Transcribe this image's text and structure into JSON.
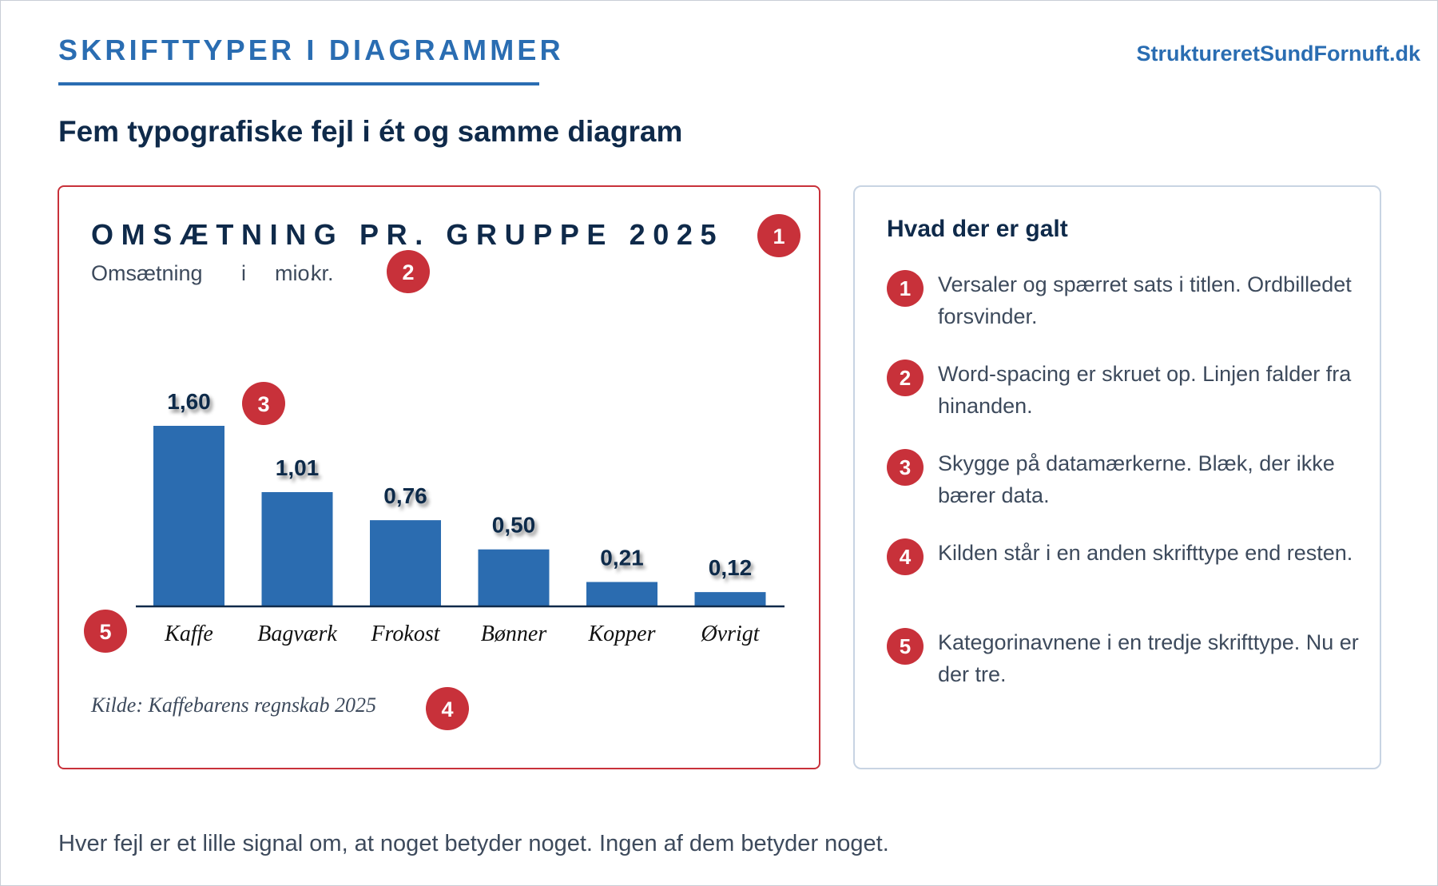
{
  "header": {
    "kicker": "SKRIFTTYPER I DIAGRAMMER",
    "site": "StruktureretSundFornuft.dk",
    "subtitle": "Fem typografiske fejl i ét og samme diagram"
  },
  "chart_data": {
    "type": "bar",
    "title": "OMSÆTNING PR. GRUPPE 2025",
    "subtitle_words": [
      "Omsætning",
      "i",
      "mio.",
      "kr."
    ],
    "categories": [
      "Kaffe",
      "Bagværk",
      "Frokost",
      "Bønner",
      "Kopper",
      "Øvrigt"
    ],
    "values": [
      1.6,
      1.01,
      0.76,
      0.5,
      0.21,
      0.12
    ],
    "value_labels": [
      "1,60",
      "1,01",
      "0,76",
      "0,50",
      "0,21",
      "0,12"
    ],
    "source": "Kilde: Kaffebarens regnskab 2025",
    "ylim": [
      0,
      1.6
    ],
    "grid": false,
    "bar_color": "#2b6cb0",
    "annotation_color": "#c8313a",
    "annotations": [
      "1",
      "2",
      "3",
      "4",
      "5"
    ]
  },
  "side": {
    "title": "Hvad der er galt",
    "items": [
      {
        "num": "1",
        "text": "Versaler og spærret sats i titlen. Ordbilledet forsvinder."
      },
      {
        "num": "2",
        "text": "Word-spacing er skruet op. Linjen falder fra hinanden."
      },
      {
        "num": "3",
        "text": "Skygge på datamærkerne. Blæk, der ikke bærer data."
      },
      {
        "num": "4",
        "text": "Kilden står i en anden skrifttype end resten."
      },
      {
        "num": "5",
        "text": "Kategorinavnene i en tredje skrifttype. Nu er der tre."
      }
    ]
  },
  "footer": "Hver fejl er et lille signal om, at noget betyder noget. Ingen af dem betyder noget."
}
